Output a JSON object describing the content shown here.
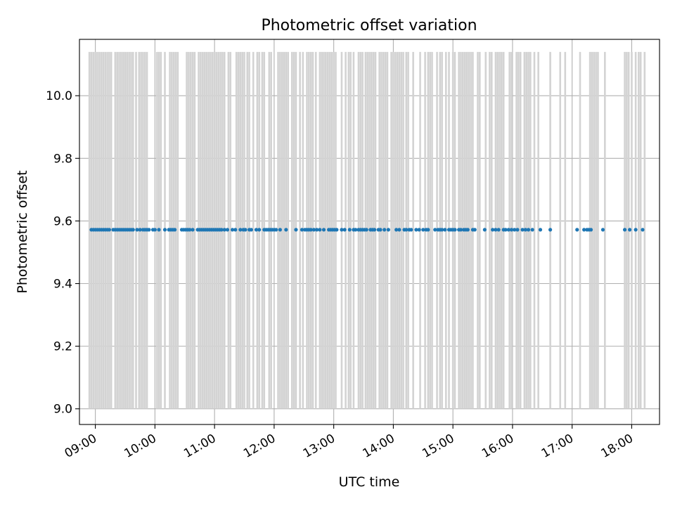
{
  "chart_data": {
    "type": "scatter",
    "title": "Photometric offset variation",
    "xlabel": "UTC time",
    "ylabel": "Photometric offset",
    "x_tick_labels": [
      "09:00",
      "10:00",
      "11:00",
      "12:00",
      "13:00",
      "14:00",
      "15:00",
      "16:00",
      "17:00",
      "18:00"
    ],
    "y_tick_labels": [
      "9.0",
      "9.2",
      "9.4",
      "9.6",
      "9.8",
      "10.0"
    ],
    "xlim": [
      "08:44",
      "18:28"
    ],
    "ylim": [
      8.95,
      10.18
    ],
    "grid": true,
    "point_color": "#1f77b4",
    "error_bar_color": "#d3d3d3",
    "error_bar_range": [
      9.0,
      10.14
    ],
    "points": {
      "y": 9.572,
      "x": [
        "08:56",
        "08:58",
        "09:00",
        "09:02",
        "09:04",
        "09:06",
        "09:08",
        "09:10",
        "09:12",
        "09:14",
        "09:18",
        "09:20",
        "09:22",
        "09:24",
        "09:26",
        "09:28",
        "09:30",
        "09:32",
        "09:34",
        "09:36",
        "09:38",
        "09:42",
        "09:45",
        "09:48",
        "09:50",
        "09:52",
        "09:54",
        "09:58",
        "10:00",
        "10:04",
        "10:10",
        "10:14",
        "10:16",
        "10:18",
        "10:20",
        "10:27",
        "10:29",
        "10:31",
        "10:33",
        "10:35",
        "10:38",
        "10:43",
        "10:45",
        "10:47",
        "10:49",
        "10:51",
        "10:53",
        "10:55",
        "10:57",
        "10:59",
        "11:01",
        "11:03",
        "11:05",
        "11:07",
        "11:10",
        "11:13",
        "11:18",
        "11:21",
        "11:26",
        "11:29",
        "11:31",
        "11:35",
        "11:37",
        "11:42",
        "11:45",
        "11:50",
        "11:52",
        "11:54",
        "11:56",
        "11:58",
        "12:00",
        "12:02",
        "12:06",
        "12:12",
        "12:22",
        "12:28",
        "12:31",
        "12:33",
        "12:35",
        "12:37",
        "12:40",
        "12:43",
        "12:46",
        "12:50",
        "12:55",
        "12:57",
        "12:59",
        "13:01",
        "13:03",
        "13:08",
        "13:11",
        "13:16",
        "13:20",
        "13:22",
        "13:25",
        "13:27",
        "13:29",
        "13:31",
        "13:33",
        "13:37",
        "13:39",
        "13:41",
        "13:45",
        "13:47",
        "13:51",
        "13:55",
        "14:03",
        "14:06",
        "14:11",
        "14:13",
        "14:16",
        "14:18",
        "14:23",
        "14:26",
        "14:30",
        "14:33",
        "14:35",
        "14:42",
        "14:45",
        "14:47",
        "14:49",
        "14:52",
        "14:56",
        "14:58",
        "15:00",
        "15:02",
        "15:06",
        "15:08",
        "15:11",
        "15:13",
        "15:15",
        "15:20",
        "15:22",
        "15:32",
        "15:40",
        "15:43",
        "15:46",
        "15:51",
        "15:53",
        "15:56",
        "15:59",
        "16:02",
        "16:05",
        "16:10",
        "16:13",
        "16:16",
        "16:20",
        "16:28",
        "16:38",
        "17:05",
        "17:12",
        "17:15",
        "17:17",
        "17:19",
        "17:31",
        "17:53",
        "17:58",
        "18:04",
        "18:11"
      ]
    },
    "error_bars_x": [
      "08:54",
      "08:56",
      "08:58",
      "09:00",
      "09:02",
      "09:04",
      "09:06",
      "09:08",
      "09:10",
      "09:12",
      "09:14",
      "09:16",
      "09:20",
      "09:22",
      "09:24",
      "09:26",
      "09:28",
      "09:30",
      "09:32",
      "09:34",
      "09:36",
      "09:38",
      "09:41",
      "09:44",
      "09:46",
      "09:48",
      "09:50",
      "09:52",
      "10:02",
      "10:04",
      "10:06",
      "10:10",
      "10:15",
      "10:17",
      "10:19",
      "10:21",
      "10:23",
      "10:32",
      "10:34",
      "10:36",
      "10:38",
      "10:40",
      "10:44",
      "10:46",
      "10:48",
      "10:50",
      "10:52",
      "10:54",
      "10:56",
      "10:58",
      "11:00",
      "11:02",
      "11:04",
      "11:06",
      "11:08",
      "11:10",
      "11:14",
      "11:16",
      "11:22",
      "11:24",
      "11:26",
      "11:28",
      "11:30",
      "11:33",
      "11:35",
      "11:39",
      "11:43",
      "11:45",
      "11:48",
      "11:50",
      "11:55",
      "11:57",
      "12:04",
      "12:06",
      "12:08",
      "12:10",
      "12:12",
      "12:14",
      "12:18",
      "12:20",
      "12:22",
      "12:26",
      "12:29",
      "12:33",
      "12:35",
      "12:37",
      "12:39",
      "12:42",
      "12:46",
      "12:48",
      "12:50",
      "12:52",
      "12:54",
      "12:56",
      "12:58",
      "13:00",
      "13:02",
      "13:08",
      "13:12",
      "13:15",
      "13:17",
      "13:20",
      "13:25",
      "13:27",
      "13:29",
      "13:32",
      "13:34",
      "13:36",
      "13:38",
      "13:40",
      "13:42",
      "13:46",
      "13:48",
      "13:50",
      "13:52",
      "13:54",
      "13:58",
      "14:00",
      "14:02",
      "14:04",
      "14:06",
      "14:08",
      "14:10",
      "14:13",
      "14:15",
      "14:20",
      "14:27",
      "14:32",
      "14:35",
      "14:37",
      "14:39",
      "14:44",
      "14:47",
      "14:49",
      "14:53",
      "14:56",
      "15:00",
      "15:02",
      "15:06",
      "15:08",
      "15:10",
      "15:12",
      "15:14",
      "15:16",
      "15:18",
      "15:20",
      "15:25",
      "15:27",
      "15:33",
      "15:37",
      "15:39",
      "15:43",
      "15:45",
      "15:47",
      "15:49",
      "15:51",
      "15:57",
      "15:59",
      "16:04",
      "16:06",
      "16:08",
      "16:12",
      "16:14",
      "16:16",
      "16:18",
      "16:22",
      "16:26",
      "16:38",
      "16:48",
      "16:53",
      "17:08",
      "17:18",
      "17:20",
      "17:22",
      "17:24",
      "17:26",
      "17:33",
      "17:53",
      "17:55",
      "17:57",
      "18:00",
      "18:04",
      "18:07",
      "18:09",
      "18:13"
    ]
  }
}
